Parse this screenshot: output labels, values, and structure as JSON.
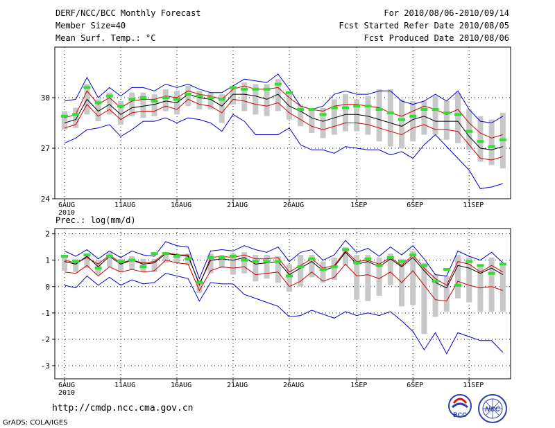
{
  "header": {
    "title": "DERF/NCC/BCC Monthly Forecast",
    "member_size": "Member Size=40",
    "variable": "Mean Surf. Temp.: °C",
    "for_range": "For 2010/08/06-2010/09/14",
    "fcst_started": "Fcst Started Refer Date 2010/08/05",
    "fcst_produced": "Fcst Produced Date 2010/08/06"
  },
  "footer": {
    "url": "http://cmdp.ncc.cma.gov.cn",
    "grads": "GrADS: COLA/IGES",
    "logo_left_text": "BCC",
    "logo_right_text": "NCC"
  },
  "colors": {
    "envelope": "#0000cc",
    "mean": "#000000",
    "spread": "#cc0000",
    "observed": "#33dd33",
    "box": "#c8c8c8"
  },
  "chart_data": [
    {
      "type": "line",
      "title": "Mean Surf. Temp.: °C",
      "xlabel": "",
      "ylabel": "",
      "ylim": [
        24,
        33
      ],
      "yticks": [
        24,
        27,
        30
      ],
      "xlim": [
        0,
        39
      ],
      "x_ticks": [
        {
          "day": 0,
          "label": "6AUG",
          "sub": "2010"
        },
        {
          "day": 5,
          "label": "11AUG",
          "sub": ""
        },
        {
          "day": 10,
          "label": "16AUG",
          "sub": ""
        },
        {
          "day": 15,
          "label": "21AUG",
          "sub": ""
        },
        {
          "day": 20,
          "label": "26AUG",
          "sub": ""
        },
        {
          "day": 26,
          "label": "1SEP",
          "sub": ""
        },
        {
          "day": 31,
          "label": "6SEP",
          "sub": ""
        },
        {
          "day": 36,
          "label": "11SEP",
          "sub": ""
        }
      ],
      "days": [
        0,
        1,
        2,
        3,
        4,
        5,
        6,
        7,
        8,
        9,
        10,
        11,
        12,
        13,
        14,
        15,
        16,
        17,
        18,
        19,
        20,
        21,
        22,
        23,
        24,
        25,
        26,
        27,
        28,
        29,
        30,
        31,
        32,
        33,
        34,
        35,
        36,
        37,
        38,
        39
      ],
      "series": [
        {
          "name": "max",
          "values": [
            29.8,
            29.9,
            31.2,
            30.0,
            30.6,
            30.1,
            30.6,
            30.6,
            30.4,
            30.8,
            30.6,
            30.8,
            30.5,
            30.3,
            30.3,
            30.7,
            31.1,
            31.0,
            30.9,
            31.4,
            30.5,
            29.5,
            29.3,
            29.5,
            30.2,
            30.4,
            30.2,
            30.2,
            30.4,
            30.4,
            29.8,
            29.6,
            29.8,
            30.2,
            29.8,
            30.4,
            29.3,
            28.6,
            28.5,
            28.9
          ]
        },
        {
          "name": "upper",
          "values": [
            28.8,
            29.0,
            30.4,
            29.6,
            30.0,
            29.4,
            29.8,
            29.9,
            29.9,
            30.1,
            30.0,
            30.4,
            30.2,
            30.1,
            29.9,
            30.5,
            30.7,
            30.5,
            30.5,
            30.6,
            30.0,
            29.5,
            29.3,
            29.2,
            29.5,
            29.6,
            29.6,
            29.5,
            29.4,
            29.1,
            28.9,
            29.2,
            29.5,
            29.3,
            29.0,
            29.3,
            28.5,
            27.9,
            27.6,
            27.8
          ]
        },
        {
          "name": "mean",
          "values": [
            28.5,
            28.7,
            29.9,
            29.2,
            29.6,
            29.0,
            29.4,
            29.5,
            29.6,
            29.8,
            29.7,
            30.2,
            30.0,
            29.9,
            29.5,
            30.2,
            30.2,
            30.1,
            29.9,
            30.2,
            29.5,
            29.2,
            28.8,
            28.6,
            28.8,
            29.0,
            29.0,
            28.9,
            28.7,
            28.5,
            28.3,
            28.7,
            28.9,
            28.6,
            28.6,
            28.6,
            27.7,
            27.0,
            26.9,
            27.1
          ]
        },
        {
          "name": "lower",
          "values": [
            28.2,
            28.4,
            29.6,
            28.9,
            29.3,
            28.7,
            29.1,
            29.2,
            29.2,
            29.5,
            29.3,
            29.9,
            29.6,
            29.5,
            29.1,
            29.9,
            29.8,
            29.6,
            29.5,
            29.7,
            29.1,
            28.7,
            28.3,
            28.1,
            28.3,
            28.5,
            28.5,
            28.4,
            28.2,
            28.0,
            27.8,
            28.2,
            28.4,
            28.1,
            28.1,
            28.0,
            27.2,
            26.4,
            26.3,
            26.5
          ]
        },
        {
          "name": "min",
          "values": [
            27.3,
            27.6,
            28.1,
            28.2,
            28.4,
            27.7,
            28.1,
            28.6,
            28.6,
            28.8,
            28.5,
            28.8,
            28.7,
            28.5,
            28.0,
            29.0,
            28.6,
            27.8,
            27.8,
            27.8,
            28.2,
            27.2,
            26.9,
            26.9,
            26.7,
            27.1,
            27.0,
            26.9,
            26.9,
            26.6,
            26.8,
            26.4,
            27.2,
            27.8,
            27.1,
            26.4,
            25.7,
            24.6,
            24.7,
            24.9
          ]
        },
        {
          "name": "box_top",
          "values": [
            29.2,
            29.4,
            30.8,
            29.9,
            30.3,
            29.8,
            30.3,
            30.3,
            30.2,
            30.5,
            30.4,
            30.7,
            30.4,
            30.3,
            30.2,
            30.6,
            30.9,
            30.8,
            30.8,
            31.1,
            30.3,
            29.6,
            29.3,
            29.4,
            29.9,
            30.2,
            29.9,
            30.1,
            30.5,
            30.5,
            29.9,
            29.8,
            29.8,
            30.1,
            29.8,
            30.3,
            29.3,
            28.9,
            28.7,
            29.1
          ]
        },
        {
          "name": "box_bottom",
          "values": [
            28.1,
            28.2,
            29.0,
            28.6,
            29.0,
            28.4,
            28.9,
            28.8,
            28.9,
            29.2,
            29.0,
            29.5,
            29.3,
            29.3,
            28.5,
            29.6,
            29.2,
            29.0,
            28.9,
            29.2,
            28.7,
            28.3,
            27.9,
            27.6,
            27.8,
            28.0,
            28.0,
            27.8,
            27.4,
            27.1,
            27.0,
            27.4,
            27.8,
            27.8,
            27.5,
            27.3,
            26.9,
            26.2,
            26.0,
            25.8
          ]
        },
        {
          "name": "observed",
          "values": [
            28.9,
            29.0,
            30.6,
            29.7,
            30.1,
            29.5,
            29.9,
            30.0,
            29.8,
            30.0,
            29.9,
            30.2,
            30.1,
            30.0,
            29.9,
            30.6,
            30.5,
            30.5,
            30.5,
            30.8,
            30.3,
            29.3,
            29.3,
            29.0,
            29.4,
            29.4,
            29.5,
            29.5,
            29.3,
            29.1,
            28.7,
            28.9,
            29.3,
            29.3,
            29.1,
            29.0,
            28.0,
            27.4,
            27.1,
            27.5
          ]
        }
      ]
    },
    {
      "type": "line",
      "title": "Prec.: log(mm/d)",
      "xlabel": "",
      "ylabel": "",
      "ylim": [
        -3.5,
        2.2
      ],
      "yticks": [
        -3,
        -2,
        -1,
        0,
        1,
        2
      ],
      "xlim": [
        0,
        39
      ],
      "x_ticks": [
        {
          "day": 0,
          "label": "6AUG",
          "sub": "2010"
        },
        {
          "day": 5,
          "label": "11AUG",
          "sub": ""
        },
        {
          "day": 10,
          "label": "16AUG",
          "sub": ""
        },
        {
          "day": 15,
          "label": "21AUG",
          "sub": ""
        },
        {
          "day": 20,
          "label": "26AUG",
          "sub": ""
        },
        {
          "day": 26,
          "label": "1SEP",
          "sub": ""
        },
        {
          "day": 31,
          "label": "6SEP",
          "sub": ""
        },
        {
          "day": 36,
          "label": "11SEP",
          "sub": ""
        }
      ],
      "days": [
        0,
        1,
        2,
        3,
        4,
        5,
        6,
        7,
        8,
        9,
        10,
        11,
        12,
        13,
        14,
        15,
        16,
        17,
        18,
        19,
        20,
        21,
        22,
        23,
        24,
        25,
        26,
        27,
        28,
        29,
        30,
        31,
        32,
        33,
        34,
        35,
        36,
        37,
        38,
        39
      ],
      "series": [
        {
          "name": "max",
          "values": [
            1.35,
            1.15,
            1.4,
            1.05,
            1.35,
            1.1,
            1.35,
            1.2,
            1.15,
            1.7,
            1.55,
            1.5,
            0.3,
            1.35,
            1.4,
            1.35,
            1.55,
            1.4,
            1.3,
            1.5,
            0.95,
            1.3,
            1.4,
            1.0,
            1.2,
            1.75,
            1.3,
            1.45,
            1.15,
            1.5,
            1.2,
            1.55,
            1.05,
            0.45,
            0.4,
            1.35,
            1.15,
            1.0,
            1.3,
            0.9
          ]
        },
        {
          "name": "upper",
          "values": [
            1.0,
            0.9,
            1.1,
            0.85,
            1.2,
            0.9,
            1.0,
            0.9,
            0.95,
            1.3,
            1.2,
            1.2,
            0.05,
            1.1,
            1.15,
            1.1,
            1.2,
            1.05,
            1.05,
            1.1,
            0.55,
            0.8,
            1.05,
            0.7,
            0.8,
            1.35,
            0.95,
            1.0,
            0.85,
            1.1,
            0.8,
            1.2,
            0.7,
            0.3,
            0.05,
            0.95,
            0.85,
            0.55,
            0.8,
            0.55
          ]
        },
        {
          "name": "mean",
          "values": [
            0.95,
            0.85,
            1.15,
            0.75,
            1.15,
            0.85,
            1.0,
            0.85,
            0.9,
            1.25,
            1.2,
            1.15,
            0.1,
            1.0,
            1.05,
            1.0,
            1.1,
            0.85,
            0.9,
            0.95,
            0.45,
            0.7,
            0.95,
            0.6,
            0.75,
            1.3,
            0.85,
            0.95,
            0.75,
            1.05,
            0.75,
            1.1,
            0.6,
            0.15,
            -0.05,
            0.8,
            0.7,
            0.5,
            0.7,
            0.45
          ]
        },
        {
          "name": "lower",
          "values": [
            0.55,
            0.5,
            0.8,
            0.4,
            0.75,
            0.55,
            0.65,
            0.55,
            0.6,
            1.0,
            0.9,
            0.85,
            -0.15,
            0.6,
            0.75,
            0.7,
            0.75,
            0.45,
            0.5,
            0.55,
            0.0,
            0.2,
            0.55,
            0.2,
            0.35,
            0.85,
            0.4,
            0.45,
            0.3,
            0.55,
            0.15,
            0.6,
            0.05,
            -0.5,
            -0.55,
            0.2,
            0.05,
            -0.05,
            0.0,
            -0.15
          ]
        },
        {
          "name": "min",
          "values": [
            0.05,
            -0.05,
            0.4,
            0.05,
            0.35,
            0.05,
            0.25,
            0.1,
            0.15,
            0.5,
            0.4,
            0.3,
            -0.55,
            0.15,
            0.1,
            0.1,
            -0.3,
            -0.45,
            -0.6,
            -0.75,
            -1.15,
            -1.1,
            -0.9,
            -1.05,
            -1.2,
            -0.95,
            -1.1,
            -1.0,
            -1.1,
            -0.95,
            -1.3,
            -1.7,
            -2.4,
            -1.75,
            -2.55,
            -1.75,
            -1.9,
            -2.05,
            -2.05,
            -2.5
          ]
        },
        {
          "name": "box_top",
          "values": [
            1.2,
            1.05,
            1.25,
            1.0,
            1.3,
            1.05,
            1.15,
            1.05,
            1.05,
            1.3,
            1.25,
            1.25,
            0.25,
            1.25,
            1.2,
            1.25,
            1.3,
            1.2,
            1.2,
            1.15,
            0.85,
            1.2,
            1.2,
            0.95,
            1.1,
            1.5,
            1.2,
            1.2,
            1.1,
            1.25,
            1.05,
            1.35,
            0.9,
            0.45,
            0.4,
            1.2,
            1.1,
            0.8,
            1.1,
            0.8
          ]
        },
        {
          "name": "box_bottom",
          "values": [
            0.6,
            0.55,
            0.7,
            0.45,
            0.75,
            0.55,
            0.65,
            0.55,
            0.55,
            0.9,
            0.9,
            0.8,
            -0.25,
            0.5,
            0.7,
            0.45,
            0.5,
            0.2,
            0.3,
            0.15,
            -0.2,
            0.0,
            0.35,
            0.15,
            0.25,
            0.8,
            -0.5,
            -0.55,
            -0.35,
            0.05,
            -0.75,
            -0.7,
            -1.8,
            -1.15,
            -0.95,
            -0.45,
            -0.6,
            -0.95,
            -0.95,
            -0.95
          ]
        },
        {
          "name": "observed",
          "values": [
            1.15,
            0.95,
            1.2,
            0.7,
            1.15,
            0.95,
            1.0,
            0.75,
            1.25,
            1.25,
            1.15,
            1.05,
            0.15,
            1.1,
            1.1,
            1.15,
            1.0,
            0.95,
            0.95,
            0.95,
            0.4,
            0.75,
            1.05,
            0.65,
            0.75,
            1.4,
            0.9,
            1.05,
            0.8,
            1.1,
            0.95,
            1.2,
            0.8,
            0.2,
            0.65,
            0.05,
            0.95,
            0.8,
            0.5,
            0.85
          ]
        }
      ]
    }
  ]
}
